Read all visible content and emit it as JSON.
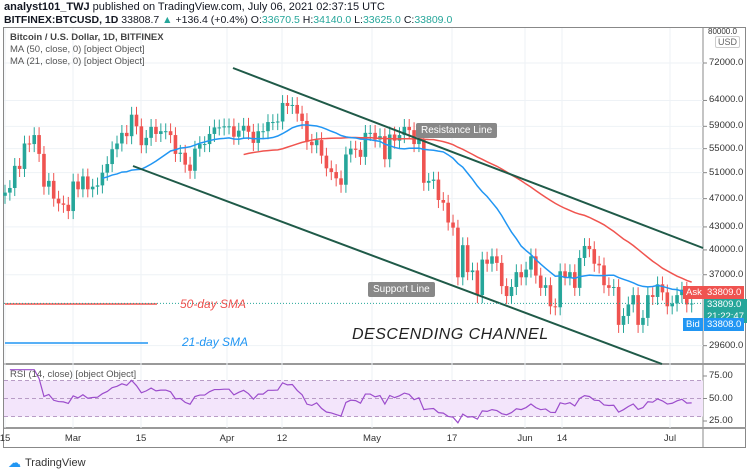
{
  "header": {
    "author": "analyst101_TWJ",
    "published": "published on TradingView.com, July 06, 2021 02:37:15 UTC",
    "symbol": "BITFINEX:BTCUSD, 1D",
    "last": "33808.7",
    "change": "+136.4 (+0.4%)",
    "o_label": "O:",
    "o": "33670.5",
    "h_label": "H:",
    "h": "34140.0",
    "l_label": "L:",
    "l": "33625.0",
    "c_label": "C:",
    "c": "33809.0"
  },
  "legend": {
    "title": "Bitcoin / U.S. Dollar, 1D, BITFINEX",
    "ma50": "MA (50, close, 0) [object Object]",
    "ma21": "MA (21, close, 0) [object Object]",
    "rsi": "RSI (14, close) [object Object]"
  },
  "currency": "USD",
  "price_ticks": [
    "80000.0",
    "72000.0",
    "64000.0",
    "59000.0",
    "55000.0",
    "51000.0",
    "47000.0",
    "43000.0",
    "40000.0",
    "37000.0",
    "29600.0"
  ],
  "rsi_ticks": [
    "75.00",
    "50.00",
    "25.00"
  ],
  "date_ticks": [
    "15",
    "Mar",
    "15",
    "Apr",
    "12",
    "May",
    "17",
    "Jun",
    "14",
    "Jul"
  ],
  "tags": {
    "ask_label": "Ask",
    "ask": "33809.0",
    "current": "33809.0",
    "countdown": "21:22:47",
    "bid_label": "Bid",
    "bid": "33808.0"
  },
  "annotations": {
    "resistance": "Resistance Line",
    "support": "Support Line",
    "channel": "DESCENDING CHANNEL",
    "sma50": "50-day SMA",
    "sma21": "21-day SMA"
  },
  "colors": {
    "up": "#26a69a",
    "down": "#ef5350",
    "ma50": "#f0544f",
    "ma21": "#2196f3",
    "rsi": "#9c4dcc",
    "channel": "#1f5a48"
  },
  "footer": {
    "brand": "TradingView"
  },
  "chart_data": {
    "type": "candlestick",
    "start_date": "2021-02-15",
    "scale": "log",
    "ylim": [
      29000,
      80000
    ],
    "closes": [
      47900,
      48600,
      52100,
      51600,
      55900,
      55800,
      57400,
      54100,
      48800,
      49700,
      47000,
      46300,
      46100,
      45200,
      49600,
      48400,
      50400,
      48400,
      48800,
      49000,
      51000,
      52400,
      54900,
      55900,
      57800,
      57200,
      61200,
      59000,
      55600,
      56900,
      58900,
      57600,
      58100,
      58100,
      57400,
      54100,
      54300,
      52300,
      51300,
      55000,
      55800,
      55800,
      57600,
      58800,
      58800,
      59000,
      59000,
      57100,
      58200,
      59100,
      58000,
      56000,
      58100,
      58100,
      59800,
      59800,
      59900,
      63500,
      62900,
      63100,
      61400,
      60000,
      56200,
      55600,
      56500,
      53800,
      51700,
      51100,
      50100,
      49100,
      54000,
      55000,
      54800,
      53600,
      57800,
      57800,
      56600,
      57200,
      53200,
      57500,
      56400,
      57400,
      58900,
      58300,
      55800,
      56700,
      49400,
      49700,
      49900,
      46800,
      46400,
      43600,
      42900,
      36700,
      40600,
      37300,
      37500,
      34700,
      38800,
      38300,
      39200,
      38400,
      35700,
      34600,
      35600,
      37300,
      36700,
      37600,
      39200,
      36900,
      35500,
      35800,
      33500,
      33400,
      37400,
      36700,
      37300,
      35500,
      39000,
      40500,
      40100,
      38300,
      38100,
      35800,
      35500,
      35600,
      31600,
      32500,
      33700,
      34700,
      31600,
      32300,
      34700,
      34500,
      35900,
      35000,
      33500,
      33800,
      34700,
      35300,
      33700,
      33800
    ],
    "series": [
      {
        "name": "MA (50, close, 0)",
        "period": 50
      },
      {
        "name": "MA (21, close, 0)",
        "period": 21
      },
      {
        "name": "RSI (14, close)",
        "period": 14
      }
    ],
    "rsi_levels": [
      70,
      50,
      30
    ]
  }
}
